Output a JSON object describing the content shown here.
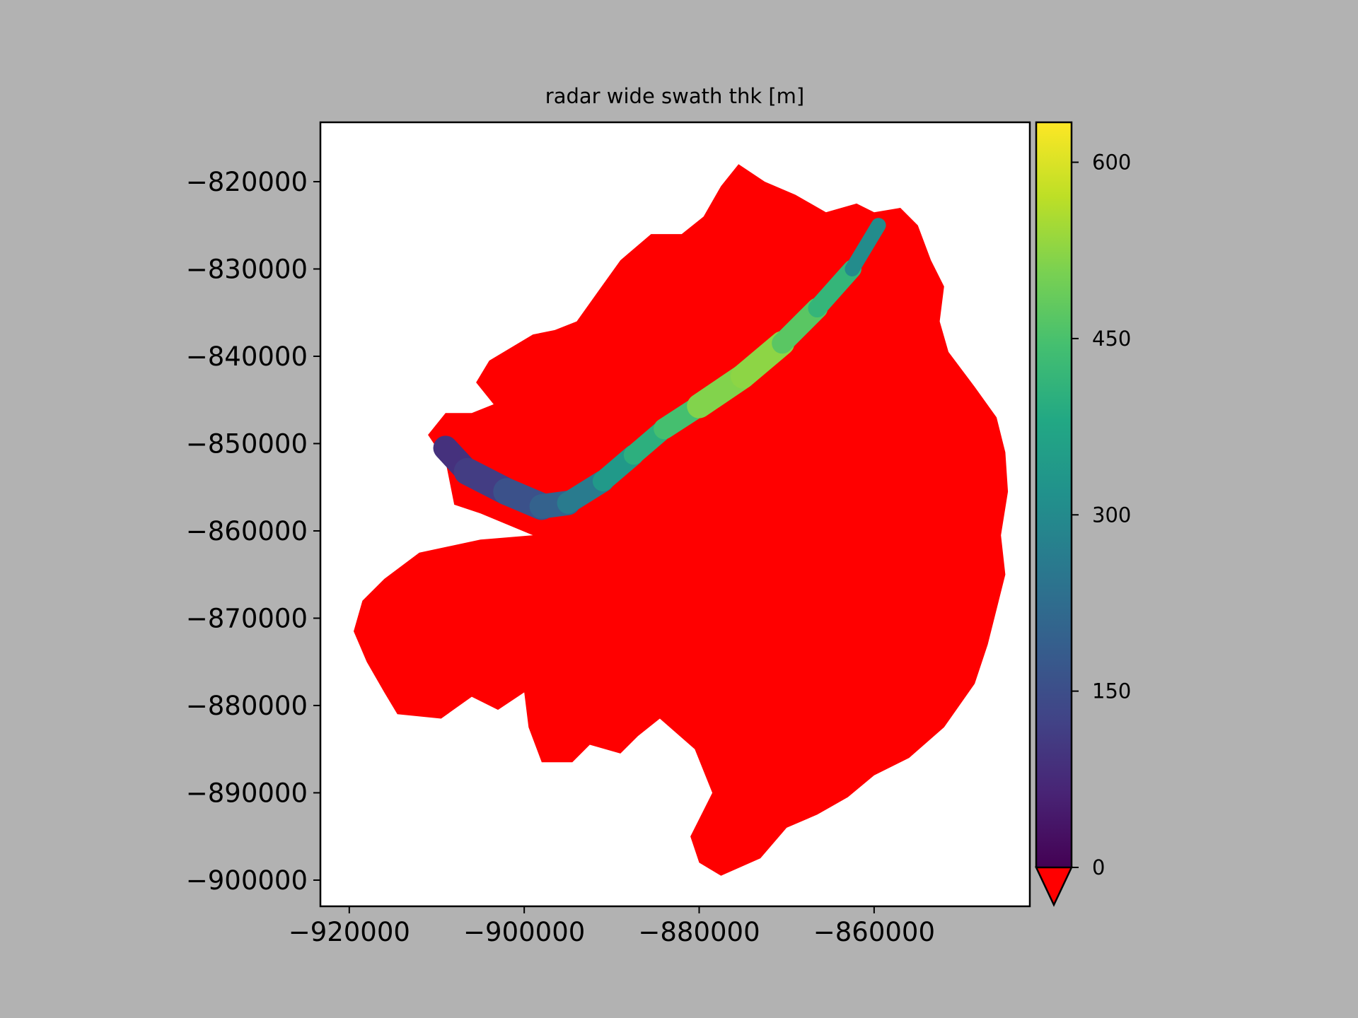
{
  "chart_data": {
    "type": "heatmap",
    "title": "radar wide swath thk [m]",
    "xlabel": "",
    "ylabel": "",
    "xlim": [
      -923300,
      -842200
    ],
    "ylim": [
      -903000,
      -813200
    ],
    "x_ticks": [
      -920000,
      -900000,
      -880000,
      -860000
    ],
    "x_tick_labels": [
      "−920000",
      "−900000",
      "−880000",
      "−860000"
    ],
    "y_ticks": [
      -820000,
      -830000,
      -840000,
      -850000,
      -860000,
      -870000,
      -880000,
      -890000,
      -900000
    ],
    "y_tick_labels": [
      "−820000",
      "−830000",
      "−840000",
      "−850000",
      "−860000",
      "−870000",
      "−880000",
      "−890000",
      "−900000"
    ],
    "grid": false,
    "background_color": "#b2b2b2",
    "axes_facecolor": "#ffffff",
    "undervalue_color": "#ff0000",
    "colormap": "viridis",
    "colorbar": {
      "vmin": 0,
      "vmax": 634,
      "extend": "min",
      "ticks": [
        0,
        150,
        300,
        450,
        600
      ],
      "tick_labels": [
        "0",
        "150",
        "300",
        "450",
        "600"
      ]
    },
    "series": [
      {
        "role": "under",
        "color": "#ff0000",
        "value": "below 0",
        "outline": [
          [
            -911000,
            -849000
          ],
          [
            -909000,
            -852000
          ],
          [
            -908000,
            -857000
          ],
          [
            -905000,
            -858000
          ],
          [
            -899000,
            -860500
          ],
          [
            -905000,
            -861000
          ],
          [
            -912000,
            -862500
          ],
          [
            -916000,
            -865500
          ],
          [
            -918500,
            -868000
          ],
          [
            -919500,
            -871500
          ],
          [
            -918000,
            -875000
          ],
          [
            -916000,
            -878500
          ],
          [
            -914500,
            -881000
          ],
          [
            -909500,
            -881500
          ],
          [
            -906000,
            -879000
          ],
          [
            -903000,
            -880500
          ],
          [
            -900000,
            -878500
          ],
          [
            -899500,
            -882500
          ],
          [
            -898000,
            -886500
          ],
          [
            -894500,
            -886500
          ],
          [
            -892500,
            -884500
          ],
          [
            -889000,
            -885500
          ],
          [
            -887000,
            -883500
          ],
          [
            -884500,
            -881500
          ],
          [
            -880500,
            -885000
          ],
          [
            -878500,
            -890000
          ],
          [
            -881000,
            -895000
          ],
          [
            -880000,
            -898000
          ],
          [
            -877500,
            -899500
          ],
          [
            -873000,
            -897500
          ],
          [
            -870000,
            -894000
          ],
          [
            -866500,
            -892500
          ],
          [
            -863000,
            -890500
          ],
          [
            -860000,
            -888000
          ],
          [
            -856000,
            -886000
          ],
          [
            -852000,
            -882500
          ],
          [
            -848500,
            -877500
          ],
          [
            -847000,
            -873000
          ],
          [
            -846000,
            -869000
          ],
          [
            -845000,
            -865000
          ],
          [
            -845500,
            -860500
          ],
          [
            -844700,
            -855500
          ],
          [
            -845000,
            -851000
          ],
          [
            -846000,
            -847000
          ],
          [
            -848500,
            -843500
          ],
          [
            -851500,
            -839500
          ],
          [
            -852500,
            -836000
          ],
          [
            -852000,
            -832000
          ],
          [
            -853500,
            -829000
          ],
          [
            -855000,
            -825000
          ],
          [
            -857000,
            -823000
          ],
          [
            -860000,
            -823500
          ],
          [
            -862000,
            -822500
          ],
          [
            -865500,
            -823500
          ],
          [
            -869000,
            -821500
          ],
          [
            -872500,
            -820000
          ],
          [
            -875500,
            -818000
          ],
          [
            -877500,
            -820500
          ],
          [
            -879500,
            -824000
          ],
          [
            -882000,
            -826000
          ],
          [
            -885500,
            -826000
          ],
          [
            -889000,
            -829000
          ],
          [
            -891500,
            -832500
          ],
          [
            -894000,
            -836000
          ],
          [
            -896500,
            -837000
          ],
          [
            -899000,
            -837500
          ],
          [
            -901500,
            -839000
          ],
          [
            -904000,
            -840500
          ],
          [
            -905500,
            -843000
          ],
          [
            -903500,
            -845500
          ],
          [
            -906000,
            -846500
          ],
          [
            -909000,
            -846500
          ],
          [
            -911000,
            -849000
          ]
        ]
      },
      {
        "role": "swath",
        "name": "",
        "centerline": [
          [
            -909000,
            -850500
          ],
          [
            -906500,
            -853200
          ],
          [
            -902000,
            -855500
          ],
          [
            -898000,
            -857200
          ],
          [
            -895000,
            -856800
          ],
          [
            -891000,
            -854300
          ],
          [
            -887500,
            -851300
          ],
          [
            -884000,
            -848300
          ],
          [
            -880000,
            -845700
          ],
          [
            -875000,
            -842300
          ],
          [
            -870500,
            -838500
          ],
          [
            -866500,
            -834500
          ],
          [
            -862500,
            -830000
          ],
          [
            -859500,
            -825000
          ]
        ],
        "values_m": [
          95,
          85,
          140,
          175,
          220,
          300,
          380,
          420,
          470,
          560,
          490,
          450,
          380,
          230
        ],
        "width_km": [
          2.6,
          3.0,
          3.2,
          3.0,
          2.6,
          2.4,
          2.3,
          2.2,
          2.6,
          3.0,
          2.6,
          2.2,
          2.0,
          1.4
        ]
      }
    ]
  }
}
